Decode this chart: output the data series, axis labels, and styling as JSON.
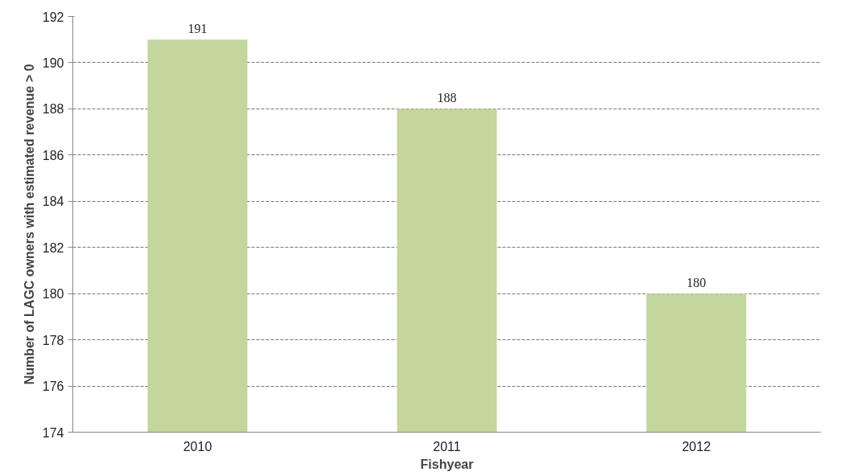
{
  "chart_data": {
    "type": "bar",
    "xlabel": "Fishyear",
    "ylabel": "Number of LAGC owners with estimated revenue > 0",
    "categories": [
      "2010",
      "2011",
      "2012"
    ],
    "values": [
      191,
      188,
      180
    ],
    "color": "#c3d69b",
    "ylim": [
      174,
      192
    ],
    "yticks": [
      174,
      176,
      178,
      180,
      182,
      184,
      186,
      188,
      190,
      192
    ],
    "grid": "y",
    "data_labels": true
  }
}
